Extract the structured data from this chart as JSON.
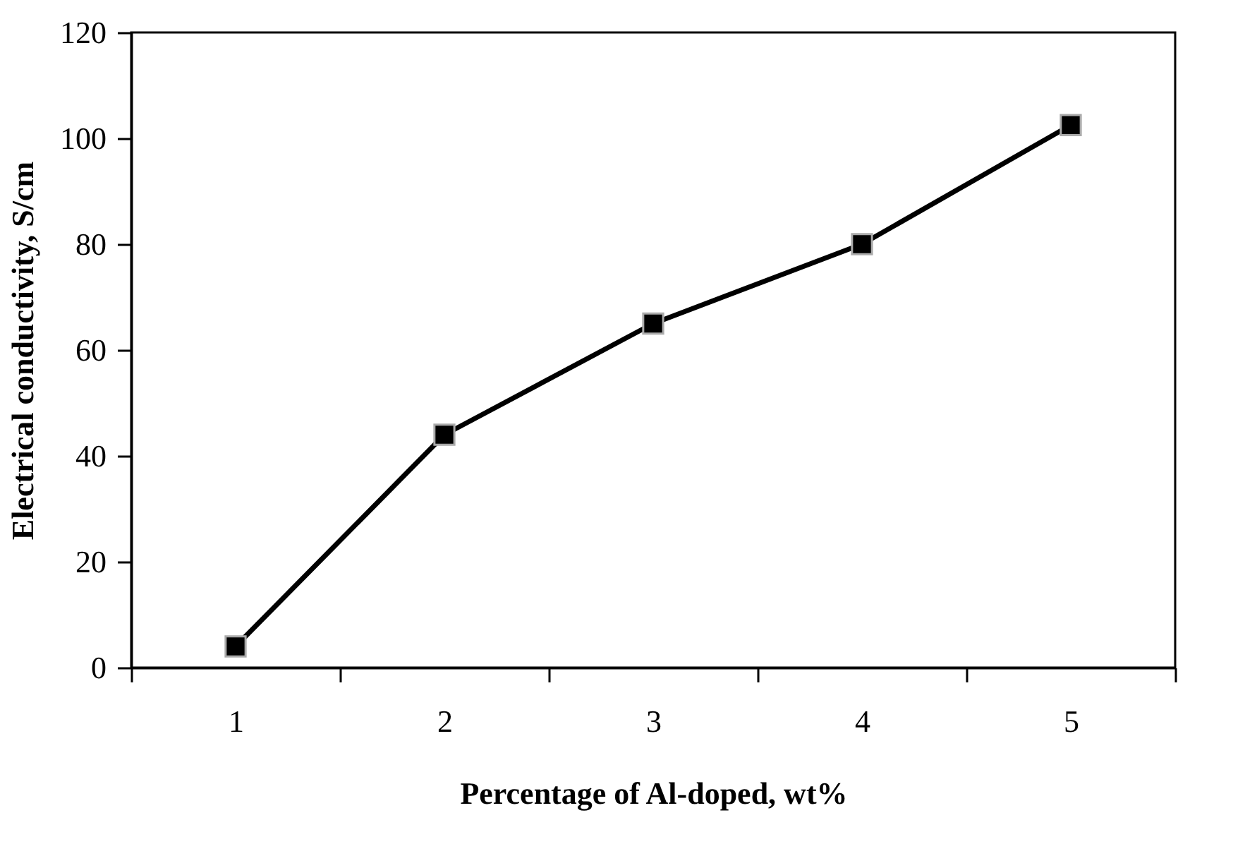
{
  "chart_data": {
    "type": "line",
    "xlabel": "Percentage of Al-doped, wt%",
    "ylabel": "Electrical conductivity, S/cm",
    "categories": [
      "1",
      "2",
      "3",
      "4",
      "5"
    ],
    "series": [
      {
        "color": "#000000",
        "values": [
          4,
          44,
          65,
          80,
          102.5
        ]
      }
    ],
    "ylim": [
      0,
      120
    ],
    "yticks": [
      0,
      20,
      40,
      60,
      80,
      100,
      120
    ],
    "grid": false,
    "marker": "square",
    "line_style": "solid"
  }
}
